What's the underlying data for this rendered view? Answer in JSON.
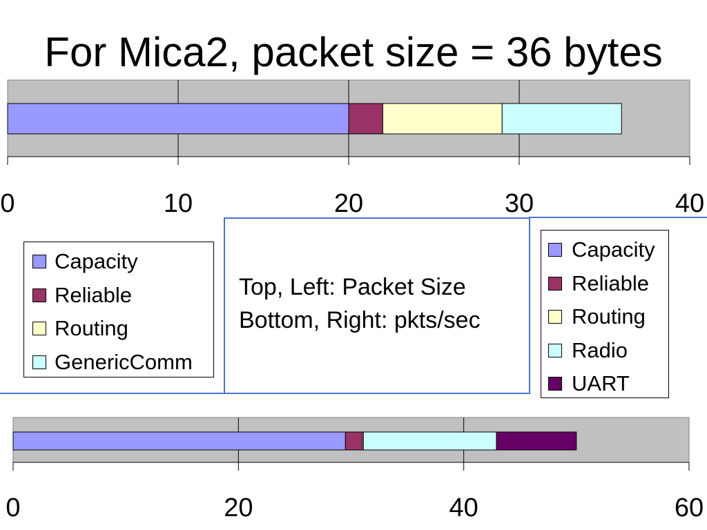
{
  "title": "For Mica2, packet size = 36 bytes",
  "note": {
    "line1": "Top, Left: Packet Size",
    "line2": "Bottom, Right: pkts/sec"
  },
  "colors": {
    "plot_background": "#c0c0c0",
    "accent_border": "#4a74c9"
  },
  "chart_data": [
    {
      "type": "bar",
      "orientation": "horizontal",
      "stacked": true,
      "title": "",
      "xlabel": "",
      "ylabel": "",
      "xlim": [
        0,
        40
      ],
      "ticks": [
        0,
        10,
        20,
        30,
        40
      ],
      "grid": true,
      "series": [
        {
          "name": "Capacity",
          "value": 20,
          "color": "#9999ff"
        },
        {
          "name": "Reliable",
          "value": 2,
          "color": "#993366"
        },
        {
          "name": "Routing",
          "value": 7,
          "color": "#ffffcc"
        },
        {
          "name": "GenericComm",
          "value": 7,
          "color": "#ccffff"
        }
      ],
      "legend": {
        "position": "bottom-left",
        "entries": [
          "Capacity",
          "Reliable",
          "Routing",
          "GenericComm"
        ]
      }
    },
    {
      "type": "bar",
      "orientation": "horizontal",
      "stacked": true,
      "title": "",
      "xlabel": "",
      "ylabel": "",
      "xlim": [
        0,
        60
      ],
      "ticks": [
        0,
        20,
        40,
        60
      ],
      "grid": true,
      "series": [
        {
          "name": "Capacity",
          "value": 29.5,
          "color": "#9999ff"
        },
        {
          "name": "Reliable",
          "value": 1.5,
          "color": "#993366"
        },
        {
          "name": "Routing",
          "value": 0.1,
          "color": "#ffffcc"
        },
        {
          "name": "Radio",
          "value": 11.8,
          "color": "#ccffff"
        },
        {
          "name": "UART",
          "value": 7.1,
          "color": "#660066"
        }
      ],
      "legend": {
        "position": "right",
        "entries": [
          "Capacity",
          "Reliable",
          "Routing",
          "Radio",
          "UART"
        ]
      }
    }
  ]
}
